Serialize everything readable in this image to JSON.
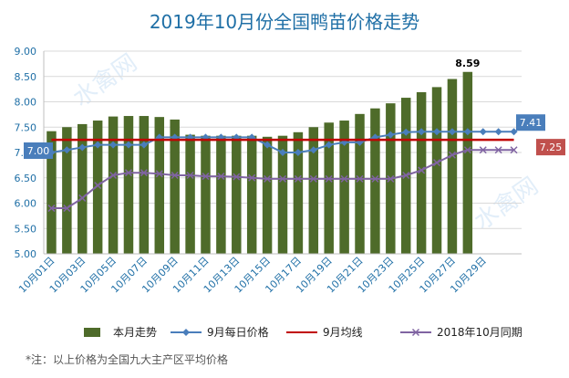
{
  "chart_data": {
    "type": "bar",
    "title": "2019年10月份全国鸭苗价格走势",
    "note": "*注：以上价格为全国九大主产区平均价格",
    "ylim": [
      5.0,
      9.0
    ],
    "yticks": [
      "5.00",
      "5.50",
      "6.00",
      "6.50",
      "7.00",
      "7.50",
      "8.00",
      "8.50",
      "9.00"
    ],
    "ytick_values": [
      5.0,
      5.5,
      6.0,
      6.5,
      7.0,
      7.5,
      8.0,
      8.5,
      9.0
    ],
    "categories": [
      "10月01日",
      "10月02日",
      "10月03日",
      "10月04日",
      "10月05日",
      "10月06日",
      "10月07日",
      "10月08日",
      "10月09日",
      "10月10日",
      "10月11日",
      "10月12日",
      "10月13日",
      "10月14日",
      "10月15日",
      "10月16日",
      "10月17日",
      "10月18日",
      "10月19日",
      "10月20日",
      "10月21日",
      "10月22日",
      "10月23日",
      "10月24日",
      "10月25日",
      "10月26日",
      "10月27日",
      "10月28日",
      "10月29日",
      "10月30日",
      "10月31日"
    ],
    "xtick_labels": [
      "10月01日",
      "",
      "10月03日",
      "",
      "10月05日",
      "",
      "10月07日",
      "",
      "10月09日",
      "",
      "10月11日",
      "",
      "10月13日",
      "",
      "10月15日",
      "",
      "10月17日",
      "",
      "10月19日",
      "",
      "10月21日",
      "",
      "10月23日",
      "",
      "10月25日",
      "",
      "10月27日",
      "",
      "10月29日",
      "",
      ""
    ],
    "series": [
      {
        "name": "本月走势",
        "kind": "bar",
        "color": "#4e6b2a",
        "values": [
          7.42,
          7.5,
          7.56,
          7.63,
          7.71,
          7.72,
          7.72,
          7.7,
          7.65,
          7.35,
          7.33,
          7.33,
          7.33,
          7.33,
          7.31,
          7.33,
          7.4,
          7.5,
          7.59,
          7.63,
          7.76,
          7.87,
          7.97,
          8.08,
          8.19,
          8.29,
          8.45,
          8.59,
          null,
          null,
          null
        ]
      },
      {
        "name": "9月每日价格",
        "kind": "line",
        "marker": "diamond",
        "color": "#4a7ebb",
        "values": [
          7.0,
          7.05,
          7.1,
          7.15,
          7.15,
          7.15,
          7.15,
          7.3,
          7.3,
          7.3,
          7.3,
          7.3,
          7.3,
          7.3,
          7.15,
          7.0,
          7.0,
          7.05,
          7.15,
          7.2,
          7.2,
          7.3,
          7.35,
          7.4,
          7.41,
          7.41,
          7.41,
          7.41,
          7.41,
          7.41,
          7.41
        ]
      },
      {
        "name": "9月均线",
        "kind": "line",
        "marker": "none",
        "color": "#c00000",
        "values": [
          7.25,
          7.25,
          7.25,
          7.25,
          7.25,
          7.25,
          7.25,
          7.25,
          7.25,
          7.25,
          7.25,
          7.25,
          7.25,
          7.25,
          7.25,
          7.25,
          7.25,
          7.25,
          7.25,
          7.25,
          7.25,
          7.25,
          7.25,
          7.25,
          7.25,
          7.25,
          7.25,
          7.25,
          7.25,
          7.25,
          7.25
        ]
      },
      {
        "name": "2018年10月同期",
        "kind": "line",
        "marker": "x",
        "color": "#8064a2",
        "values": [
          5.9,
          5.9,
          6.1,
          6.35,
          6.55,
          6.6,
          6.6,
          6.58,
          6.55,
          6.55,
          6.53,
          6.53,
          6.52,
          6.5,
          6.48,
          6.48,
          6.48,
          6.48,
          6.48,
          6.48,
          6.48,
          6.48,
          6.48,
          6.55,
          6.65,
          6.8,
          6.95,
          7.05,
          7.05,
          7.05,
          7.05
        ]
      }
    ],
    "annotations": [
      {
        "text": "8.59",
        "series": 0,
        "index": 27,
        "style": "plain"
      },
      {
        "text": "7.00",
        "series": 1,
        "index": 0,
        "style": "box",
        "color": "#4a7ebb",
        "side": "left"
      },
      {
        "text": "7.41",
        "series": 1,
        "index": 30,
        "style": "box",
        "color": "#4a7ebb",
        "side": "right-up"
      },
      {
        "text": "7.25",
        "series": 2,
        "index": 30,
        "style": "box",
        "color": "#c0504d",
        "side": "right-down"
      }
    ],
    "legend_placement": "bottom",
    "grid": true
  },
  "watermark": "水禽网"
}
